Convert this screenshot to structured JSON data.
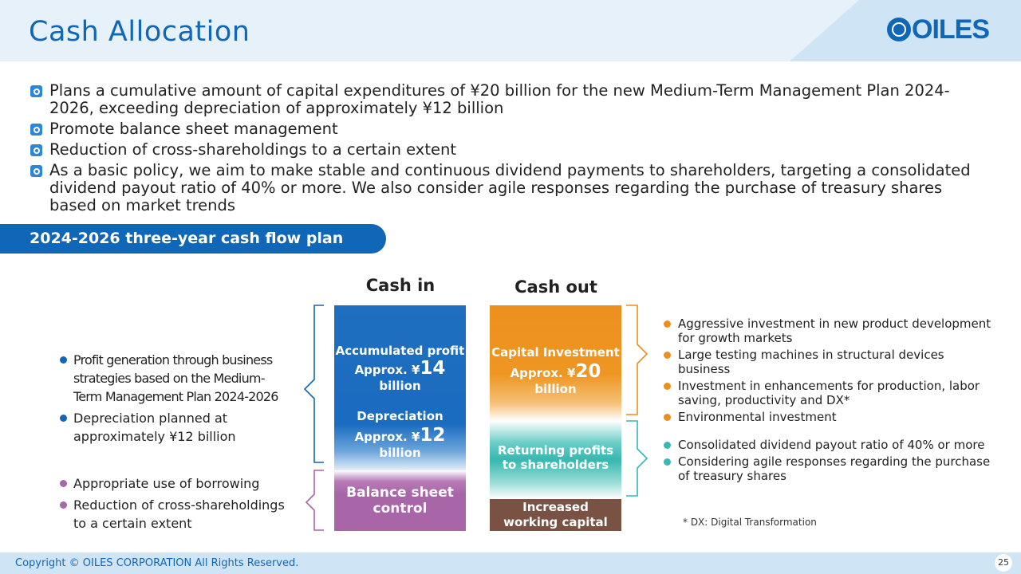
{
  "header": {
    "title": "Cash Allocation",
    "logo_text": "OILES"
  },
  "bullets": [
    "Plans a cumulative amount of capital expenditures of ¥20 billion for the new Medium-Term Management Plan 2024-2026, exceeding depreciation of approximately ¥12 billion",
    "Promote balance sheet management",
    "Reduction of cross-shareholdings to a certain extent",
    "As a basic policy, we aim to make stable and continuous dividend payments to shareholders, targeting a consolidated dividend payout ratio of 40% or more. We also consider agile responses regarding the purchase of treasury shares based on market trends"
  ],
  "banner": "2024-2026 three-year cash flow plan",
  "columns": {
    "cash_in": "Cash in",
    "cash_out": "Cash out"
  },
  "cash_in": {
    "accumulated_label": "Accumulated profit",
    "accumulated_prefix": "Approx. ¥",
    "accumulated_value": "14",
    "accumulated_suffix": " billion",
    "depreciation_label": "Depreciation",
    "depreciation_prefix": "Approx. ¥",
    "depreciation_value": "12",
    "depreciation_suffix": " billion",
    "balance_sheet_line1": "Balance sheet",
    "balance_sheet_line2": "control"
  },
  "cash_out": {
    "capital_label": "Capital Investment",
    "capital_prefix": "Approx. ¥",
    "capital_value": "20",
    "capital_suffix": " billion",
    "returning_line1": "Returning profits",
    "returning_line2": "to shareholders",
    "working_line1": "Increased",
    "working_line2": "working capital"
  },
  "left_notes": {
    "profit_lines": [
      "Profit generation through business",
      "strategies based on the Medium-",
      "Term Management Plan 2024-2026"
    ],
    "depreciation_lines": [
      "Depreciation planned at",
      "approximately ¥12 billion"
    ],
    "borrowing": "Appropriate use of borrowing",
    "cross_lines": [
      "Reduction of cross-shareholdings",
      "to a certain extent"
    ]
  },
  "right_notes": {
    "investment": [
      "Aggressive investment in new product development for growth markets",
      "Large testing machines in structural devices business",
      "Investment in enhancements for production, labor saving, productivity and DX*",
      "Environmental investment"
    ],
    "returns": [
      "Consolidated dividend payout ratio of 40% or more",
      "Considering agile responses regarding the purchase of treasury shares"
    ]
  },
  "note": "* DX: Digital Transformation",
  "footer": {
    "copyright": "Copyright © OILES CORPORATION All Rights Reserved.",
    "page": "25"
  },
  "colors": {
    "primary_blue": "#1167b7",
    "orange": "#ec8f1e",
    "teal": "#36b8b0",
    "purple": "#a865a8",
    "brown": "#7a5244"
  }
}
